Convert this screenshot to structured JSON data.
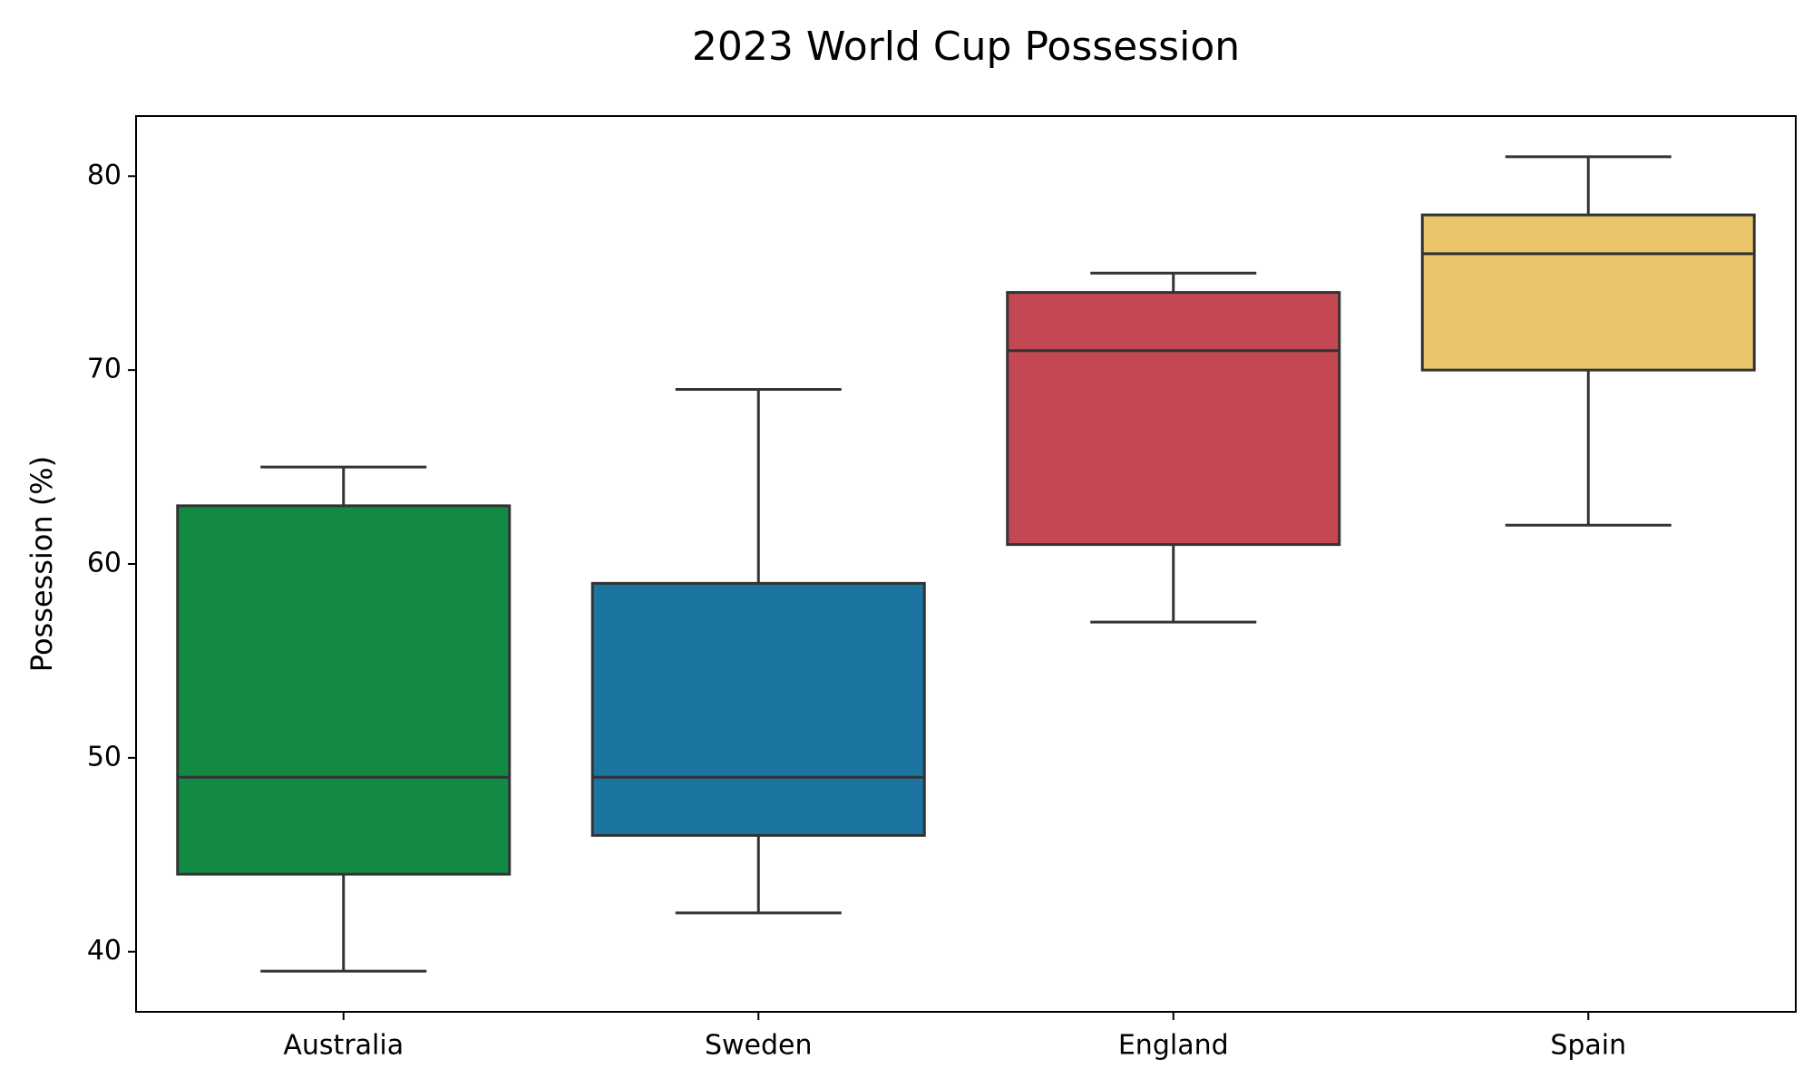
{
  "chart_data": {
    "type": "box",
    "title": "2023 World Cup Possession",
    "y_label": "Possession (%)",
    "categories": [
      "Australia",
      "Sweden",
      "England",
      "Spain"
    ],
    "colors": [
      "#138a43",
      "#1c74a0",
      "#c44853",
      "#e8c56a"
    ],
    "whislo": [
      39,
      42,
      57,
      62
    ],
    "q1": [
      44,
      46,
      61,
      70
    ],
    "median": [
      49,
      49,
      71,
      76
    ],
    "q3": [
      63,
      59,
      74,
      78
    ],
    "whishi": [
      65,
      69,
      75,
      81
    ],
    "ylim": [
      36.9,
      83.1
    ],
    "yticks": [
      40,
      50,
      60,
      70,
      80
    ]
  }
}
